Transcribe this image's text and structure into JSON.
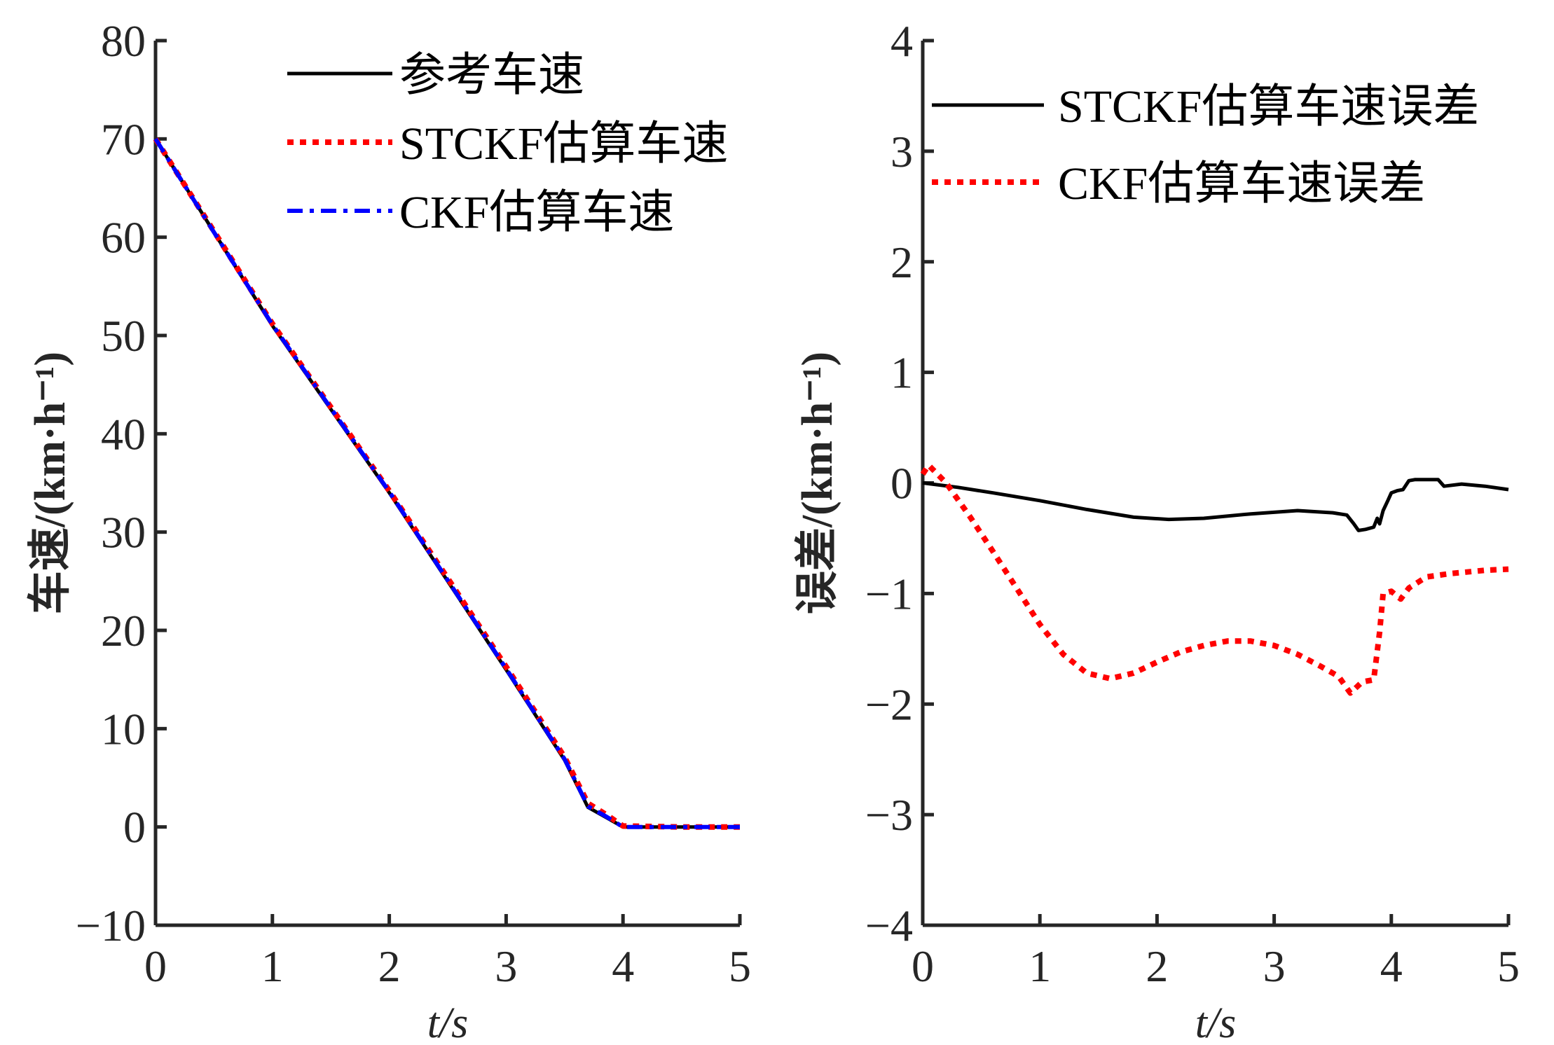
{
  "chart_data": [
    {
      "type": "line",
      "title": "",
      "xlabel": "t/s",
      "ylabel": "车速/(km·h⁻¹)",
      "xlim": [
        0,
        5
      ],
      "ylim": [
        -10,
        80
      ],
      "xticks": [
        "0",
        "1",
        "2",
        "3",
        "4",
        "5"
      ],
      "yticks": [
        "−10",
        "0",
        "10",
        "20",
        "30",
        "40",
        "50",
        "60",
        "70",
        "80"
      ],
      "grid": false,
      "legend_position": "top-right",
      "series": [
        {
          "name": "参考车速",
          "color": "#000000",
          "style": "solid",
          "x": [
            0,
            0.5,
            1,
            1.5,
            2,
            2.5,
            3,
            3.5,
            3.7,
            3.85,
            4.0,
            4.5,
            5.0
          ],
          "y": [
            70,
            60.5,
            51,
            42.5,
            34,
            25,
            16,
            6.8,
            2.0,
            1.0,
            0,
            0,
            0
          ]
        },
        {
          "name": "STCKF估算车速",
          "color": "#ff0000",
          "style": "dotted",
          "x": [
            0,
            0.5,
            1,
            1.5,
            2,
            2.5,
            3,
            3.5,
            3.7,
            3.85,
            4.0,
            4.5,
            5.0
          ],
          "y": [
            70,
            60.6,
            51.2,
            42.7,
            34.2,
            25.3,
            16.3,
            7.1,
            2.4,
            1.3,
            0.1,
            0,
            0
          ]
        },
        {
          "name": "CKF估算车速",
          "color": "#0000ff",
          "style": "dashdot",
          "x": [
            0,
            0.5,
            1,
            1.5,
            2,
            2.5,
            3,
            3.5,
            3.7,
            3.85,
            4.0,
            4.5,
            5.0
          ],
          "y": [
            70,
            60.5,
            51.1,
            42.6,
            34.1,
            25.1,
            16.1,
            6.9,
            2.1,
            1.1,
            0,
            0,
            0
          ]
        }
      ]
    },
    {
      "type": "line",
      "title": "",
      "xlabel": "t/s",
      "ylabel": "误差/(km·h⁻¹)",
      "xlim": [
        0,
        5
      ],
      "ylim": [
        -4,
        4
      ],
      "xticks": [
        "0",
        "1",
        "2",
        "3",
        "4",
        "5"
      ],
      "yticks": [
        "−4",
        "−3",
        "−2",
        "−1",
        "0",
        "1",
        "2",
        "3",
        "4"
      ],
      "grid": false,
      "legend_position": "top-right",
      "series": [
        {
          "name": "STCKF估算车速误差",
          "color": "#000000",
          "style": "solid",
          "x": [
            0,
            0.3,
            0.6,
            1.0,
            1.4,
            1.8,
            2.1,
            2.4,
            2.8,
            3.2,
            3.5,
            3.62,
            3.68,
            3.72,
            3.78,
            3.85,
            3.88,
            3.9,
            3.93,
            3.97,
            4.0,
            4.05,
            4.1,
            4.15,
            4.2,
            4.4,
            4.45,
            4.6,
            4.8,
            5.0
          ],
          "y": [
            0,
            -0.04,
            -0.09,
            -0.16,
            -0.24,
            -0.31,
            -0.33,
            -0.32,
            -0.28,
            -0.25,
            -0.27,
            -0.29,
            -0.37,
            -0.43,
            -0.42,
            -0.4,
            -0.32,
            -0.37,
            -0.25,
            -0.16,
            -0.09,
            -0.07,
            -0.06,
            0.02,
            0.03,
            0.03,
            -0.03,
            -0.01,
            -0.03,
            -0.06
          ]
        },
        {
          "name": "CKF估算车速误差",
          "color": "#ff0000",
          "style": "dotted",
          "x": [
            0,
            0.05,
            0.2,
            0.4,
            0.6,
            0.8,
            1.0,
            1.2,
            1.4,
            1.6,
            1.8,
            2.0,
            2.2,
            2.4,
            2.6,
            2.8,
            3.0,
            3.2,
            3.4,
            3.55,
            3.65,
            3.75,
            3.85,
            3.9,
            3.93,
            4.0,
            4.08,
            4.15,
            4.3,
            4.5,
            4.8,
            5.0
          ],
          "y": [
            0.08,
            0.16,
            0.0,
            -0.3,
            -0.62,
            -0.95,
            -1.28,
            -1.55,
            -1.72,
            -1.77,
            -1.72,
            -1.62,
            -1.53,
            -1.47,
            -1.43,
            -1.43,
            -1.47,
            -1.55,
            -1.66,
            -1.75,
            -1.9,
            -1.8,
            -1.78,
            -1.35,
            -1.0,
            -0.98,
            -1.05,
            -0.95,
            -0.85,
            -0.82,
            -0.79,
            -0.78
          ]
        }
      ]
    }
  ]
}
